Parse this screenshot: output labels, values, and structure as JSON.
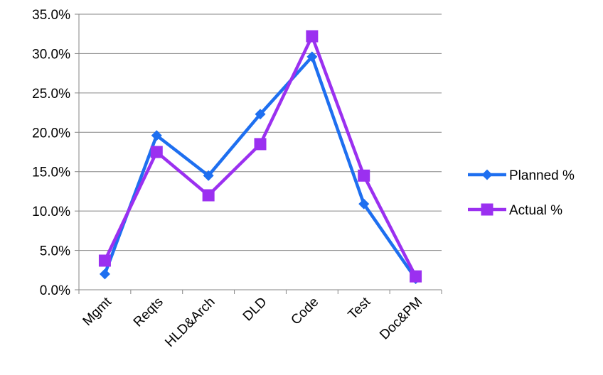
{
  "chart_data": {
    "type": "line",
    "title": "",
    "xlabel": "",
    "ylabel": "",
    "categories": [
      "Mgmt",
      "Reqts",
      "HLD&Arch",
      "DLD",
      "Code",
      "Test",
      "Doc&PM"
    ],
    "ylim": [
      0,
      35
    ],
    "yticks": [
      "0.0%",
      "5.0%",
      "10.0%",
      "15.0%",
      "20.0%",
      "25.0%",
      "30.0%",
      "35.0%"
    ],
    "grid": true,
    "legend_position": "right",
    "series": [
      {
        "name": "Planned %",
        "marker": "diamond",
        "color": "#1e6ff0",
        "values": [
          2.0,
          19.6,
          14.5,
          22.3,
          29.6,
          10.9,
          1.4
        ]
      },
      {
        "name": "Actual %",
        "marker": "square",
        "color": "#9b30f0",
        "values": [
          3.7,
          17.5,
          12.0,
          18.5,
          32.2,
          14.5,
          1.7
        ]
      }
    ]
  }
}
